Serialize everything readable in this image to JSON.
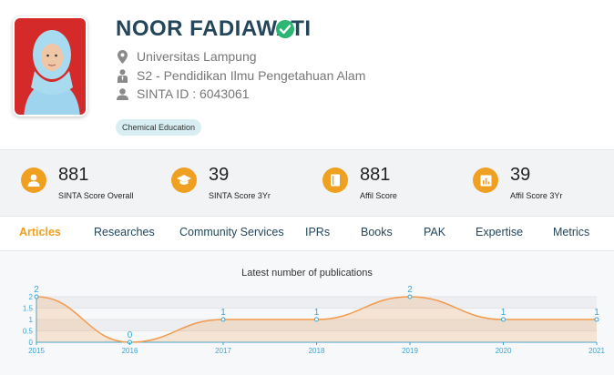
{
  "profile": {
    "name": "NOOR FADIAWATI",
    "university": "Universitas Lampung",
    "program": "S2 - Pendidikan Ilmu Pengetahuan Alam",
    "sinta_id": "SINTA ID : 6043061",
    "tag": "Chemical Education"
  },
  "scores": [
    {
      "value": "881",
      "label": "SINTA Score Overall",
      "icon": "user-icon"
    },
    {
      "value": "39",
      "label": "SINTA Score 3Yr",
      "icon": "graduation-cap-icon"
    },
    {
      "value": "881",
      "label": "Affil Score",
      "icon": "book-icon"
    },
    {
      "value": "39",
      "label": "Affil Score 3Yr",
      "icon": "bar-chart-icon"
    }
  ],
  "tabs": [
    "Articles",
    "Researches",
    "Community Services",
    "IPRs",
    "Books",
    "PAK",
    "Expertise",
    "Metrics"
  ],
  "active_tab": "Articles",
  "colors": {
    "accent": "#f0a020",
    "name": "#24465a",
    "verified": "#2bb673",
    "line": "#f39a4b",
    "label": "#3aa4d4"
  },
  "chart_data": {
    "type": "area",
    "title": "Latest number of publications",
    "x": [
      "2015",
      "2016",
      "2017",
      "2018",
      "2019",
      "2020",
      "2021"
    ],
    "values": [
      2,
      0,
      1,
      1,
      2,
      1,
      1
    ],
    "yticks": [
      "0",
      "0.5",
      "1",
      "1.5",
      "2"
    ],
    "ylim": [
      0,
      2
    ],
    "grid": true,
    "smooth": true
  }
}
